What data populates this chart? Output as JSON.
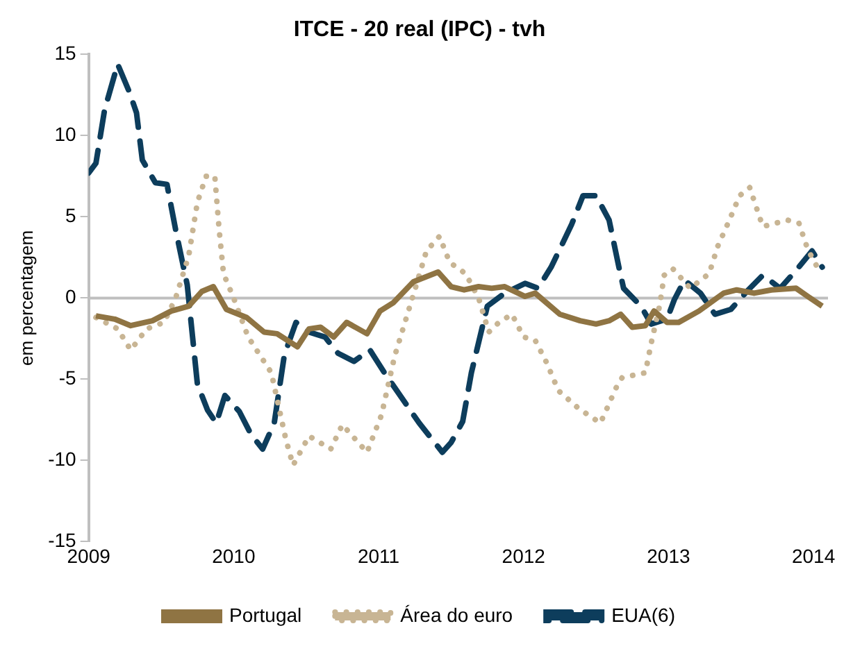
{
  "chart_data": {
    "type": "line",
    "title": "ITCE - 20 real (IPC) - tvh",
    "ylabel": "em percentagem",
    "xlim": [
      2009,
      2014.1
    ],
    "xticks": [
      2009,
      2010,
      2011,
      2012,
      2013,
      2014
    ],
    "ylim": [
      -15,
      15
    ],
    "yticks": [
      -15,
      -10,
      -5,
      0,
      5,
      10,
      15
    ],
    "grid": false,
    "legend": "bottom",
    "marker": "none",
    "ref_lines": [
      {
        "axis": "y",
        "value": 0,
        "color": "#bfbfbf"
      }
    ],
    "series": [
      {
        "name": "Portugal",
        "color": "#8f7443",
        "line_style": "solid",
        "x": [
          2009.05,
          2009.18,
          2009.29,
          2009.44,
          2009.57,
          2009.69,
          2009.78,
          2009.86,
          2009.95,
          2010.09,
          2010.21,
          2010.3,
          2010.44,
          2010.52,
          2010.6,
          2010.69,
          2010.78,
          2010.92,
          2011.01,
          2011.1,
          2011.24,
          2011.41,
          2011.5,
          2011.59,
          2011.69,
          2011.78,
          2011.87,
          2012.01,
          2012.08,
          2012.25,
          2012.39,
          2012.5,
          2012.59,
          2012.67,
          2012.75,
          2012.84,
          2012.9,
          2012.99,
          2013.07,
          2013.21,
          2013.38,
          2013.47,
          2013.59,
          2013.71,
          2013.88,
          2013.96,
          2014.06
        ],
        "values": [
          -1.1,
          -1.3,
          -1.7,
          -1.4,
          -0.8,
          -0.5,
          0.4,
          0.7,
          -0.7,
          -1.2,
          -2.1,
          -2.2,
          -3,
          -1.9,
          -1.8,
          -2.4,
          -1.5,
          -2.2,
          -0.8,
          -0.3,
          1,
          1.6,
          0.7,
          0.5,
          0.7,
          0.6,
          0.7,
          0.1,
          0.3,
          -1,
          -1.4,
          -1.6,
          -1.4,
          -1,
          -1.8,
          -1.7,
          -0.8,
          -1.5,
          -1.5,
          -0.8,
          0.3,
          0.5,
          0.3,
          0.5,
          0.6,
          0.1,
          -0.5
        ]
      },
      {
        "name": "Área do euro",
        "color": "#c8b594",
        "line_style": "dotted",
        "x": [
          2009.05,
          2009.2,
          2009.29,
          2009.4,
          2009.52,
          2009.6,
          2009.69,
          2009.75,
          2009.81,
          2009.87,
          2009.9,
          2009.93,
          2010,
          2010.1,
          2010.26,
          2010.36,
          2010.41,
          2010.52,
          2010.67,
          2010.75,
          2010.86,
          2010.92,
          2011.02,
          2011.11,
          2011.25,
          2011.33,
          2011.42,
          2011.49,
          2011.6,
          2011.69,
          2011.76,
          2011.83,
          2011.92,
          2012,
          2012.08,
          2012.16,
          2012.24,
          2012.38,
          2012.53,
          2012.64,
          2012.68,
          2012.84,
          2012.88,
          2012.94,
          2012.97,
          2013.03,
          2013.15,
          2013.28,
          2013.34,
          2013.42,
          2013.49,
          2013.56,
          2013.62,
          2013.65,
          2013.82,
          2013.9,
          2013.96,
          2014.05
        ],
        "values": [
          -1.2,
          -1.9,
          -3.2,
          -1.9,
          -1.5,
          0,
          2.6,
          5.9,
          7.5,
          7.5,
          4.2,
          1.5,
          0,
          -2.4,
          -4.6,
          -8.7,
          -10.3,
          -8.5,
          -9.3,
          -7.8,
          -8.9,
          -9.5,
          -7.2,
          -3.6,
          0.5,
          2.9,
          3.8,
          2.2,
          1.5,
          0,
          -2.1,
          -1.5,
          -1,
          -2.4,
          -2.6,
          -4,
          -5.7,
          -6.8,
          -7.7,
          -5.5,
          -4.9,
          -4.6,
          -2.8,
          -0.4,
          1.4,
          1.8,
          0.6,
          1.5,
          3.2,
          4.8,
          6.3,
          6.8,
          5.2,
          4.4,
          4.8,
          4.6,
          3,
          1.5
        ]
      },
      {
        "name": "EUA(6)",
        "color": "#0d3d5c",
        "line_style": "dashed",
        "x": [
          2009,
          2009.05,
          2009.11,
          2009.2,
          2009.28,
          2009.33,
          2009.37,
          2009.46,
          2009.54,
          2009.6,
          2009.68,
          2009.75,
          2009.82,
          2009.88,
          2009.94,
          2010.04,
          2010.12,
          2010.2,
          2010.28,
          2010.35,
          2010.43,
          2010.52,
          2010.63,
          2010.72,
          2010.83,
          2010.94,
          2011.04,
          2011.28,
          2011.44,
          2011.5,
          2011.58,
          2011.64,
          2011.75,
          2011.87,
          2012.01,
          2012.1,
          2012.19,
          2012.33,
          2012.41,
          2012.5,
          2012.59,
          2012.66,
          2012.69,
          2012.81,
          2012.88,
          2012.99,
          2013.04,
          2013.11,
          2013.22,
          2013.32,
          2013.43,
          2013.55,
          2013.65,
          2013.77,
          2013.88,
          2013.99,
          2014.06
        ],
        "values": [
          7.7,
          8.3,
          11.6,
          14.4,
          12.7,
          11.4,
          8.5,
          7.1,
          7,
          4.2,
          0.8,
          -5.3,
          -6.9,
          -7.7,
          -6,
          -7,
          -8.4,
          -9.3,
          -7.7,
          -3.5,
          -1.5,
          -2.1,
          -2.4,
          -3.4,
          -3.9,
          -3.2,
          -4.6,
          -7.7,
          -9.5,
          -8.9,
          -7.6,
          -4.6,
          -0.5,
          0.3,
          0.9,
          0.6,
          1.9,
          4.5,
          6.3,
          6.3,
          4.8,
          1.8,
          0.6,
          -0.5,
          -1.6,
          -1.3,
          -0.1,
          1.1,
          0.3,
          -1,
          -0.7,
          0.5,
          1.4,
          0.6,
          1.7,
          2.9,
          1.9
        ]
      }
    ]
  }
}
